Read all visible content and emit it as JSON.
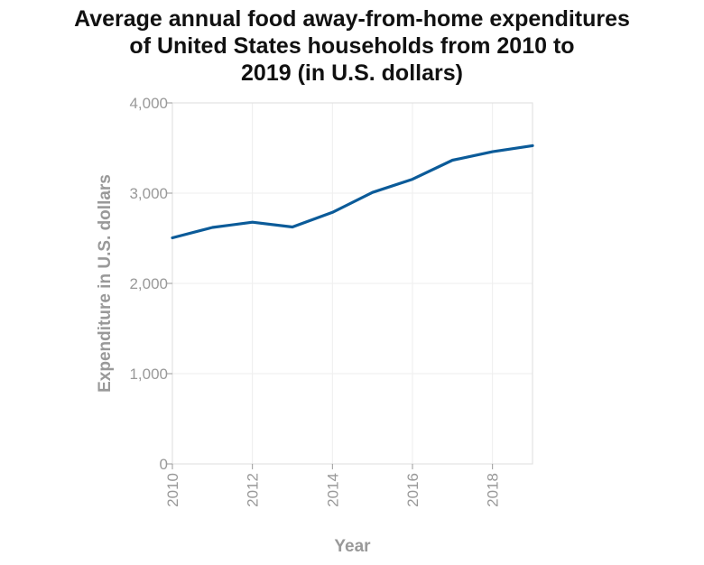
{
  "chart_data": {
    "type": "line",
    "title_lines": [
      "Average annual food away-from-home expenditures",
      "of United States households from 2010 to",
      "2019 (in U.S. dollars)"
    ],
    "xlabel": "Year",
    "ylabel": "Expenditure in U.S. dollars",
    "x": [
      2010,
      2011,
      2012,
      2013,
      2014,
      2015,
      2016,
      2017,
      2018,
      2019
    ],
    "series": [
      {
        "values": [
          2505,
          2620,
          2678,
          2625,
          2787,
          3008,
          3154,
          3365,
          3459,
          3526
        ]
      }
    ],
    "xlim": [
      2010,
      2019
    ],
    "ylim": [
      0,
      4000
    ],
    "x_ticks": [
      "2010",
      "2012",
      "2014",
      "2016",
      "2018"
    ],
    "y_ticks": [
      "0",
      "1,000",
      "2,000",
      "3,000",
      "4,000"
    ],
    "grid": true,
    "line_color": "#0b5b99"
  }
}
